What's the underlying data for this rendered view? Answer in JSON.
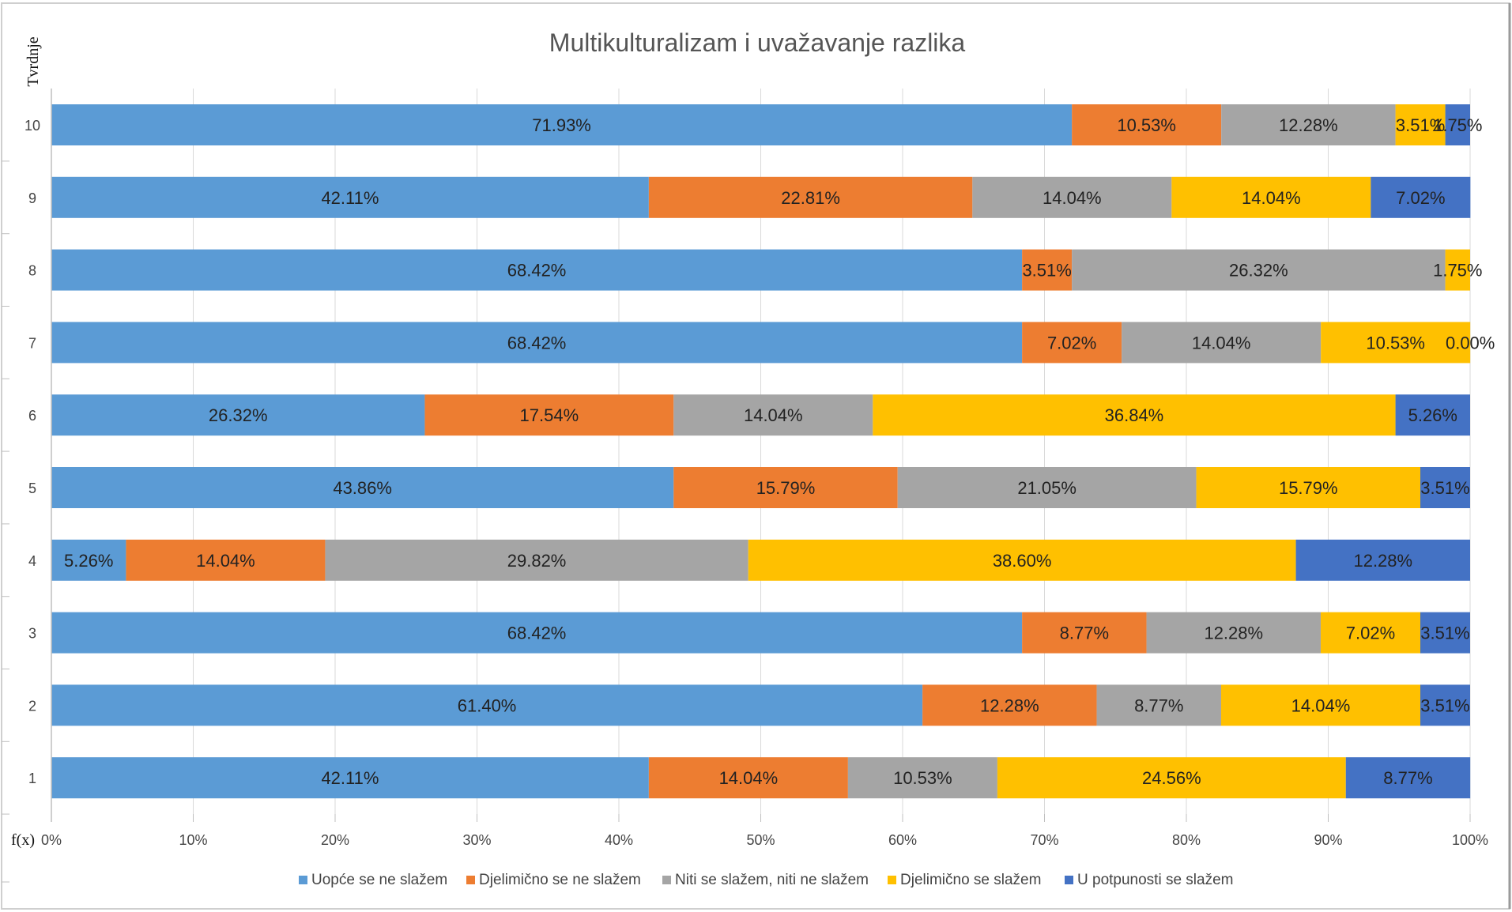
{
  "y_axis_label": "Tvrdnje",
  "fx_label": "f(x)",
  "chart_data": {
    "type": "bar",
    "orientation": "horizontal",
    "stacked": "percent",
    "title": "Multikulturalizam i uvažavanje razlika",
    "xlabel": "",
    "ylabel": "Tvrdnje",
    "xlim": [
      0,
      100
    ],
    "x_ticks": [
      "0%",
      "10%",
      "20%",
      "30%",
      "40%",
      "50%",
      "60%",
      "70%",
      "80%",
      "90%",
      "100%"
    ],
    "categories": [
      "10",
      "9",
      "8",
      "7",
      "6",
      "5",
      "4",
      "3",
      "2",
      "1"
    ],
    "series": [
      {
        "name": "Uopće se ne slažem",
        "color": "#5B9BD5",
        "values": [
          71.93,
          42.11,
          68.42,
          68.42,
          26.32,
          43.86,
          5.26,
          68.42,
          61.4,
          42.11
        ],
        "labels": [
          "71.93%",
          "42.11%",
          "68.42%",
          "68.42%",
          "26.32%",
          "43.86%",
          "5.26%",
          "68.42%",
          "61.40%",
          "42.11%"
        ]
      },
      {
        "name": "Djelimično se ne slažem",
        "color": "#ED7D31",
        "values": [
          10.53,
          22.81,
          3.51,
          7.02,
          17.54,
          15.79,
          14.04,
          8.77,
          12.28,
          14.04
        ],
        "labels": [
          "10.53%",
          "22.81%",
          "3.51%",
          "7.02%",
          "17.54%",
          "15.79%",
          "14.04%",
          "8.77%",
          "12.28%",
          "14.04%"
        ]
      },
      {
        "name": "Niti se slažem, niti ne slažem",
        "color": "#A5A5A5",
        "values": [
          12.28,
          14.04,
          26.32,
          14.04,
          14.04,
          21.05,
          29.82,
          12.28,
          8.77,
          10.53
        ],
        "labels": [
          "12.28%",
          "14.04%",
          "26.32%",
          "14.04%",
          "14.04%",
          "21.05%",
          "29.82%",
          "12.28%",
          "8.77%",
          "10.53%"
        ]
      },
      {
        "name": "Djelimično se slažem",
        "color": "#FFC000",
        "values": [
          3.51,
          14.04,
          1.75,
          10.53,
          36.84,
          15.79,
          38.6,
          7.02,
          14.04,
          24.56
        ],
        "labels": [
          "3.51%",
          "14.04%",
          "1.75%",
          "10.53%",
          "36.84%",
          "15.79%",
          "38.60%",
          "7.02%",
          "14.04%",
          "24.56%"
        ]
      },
      {
        "name": "U potpunosti se slažem",
        "color": "#4472C4",
        "values": [
          1.75,
          7.02,
          0,
          0.0,
          5.26,
          3.51,
          12.28,
          3.51,
          3.51,
          8.77
        ],
        "labels": [
          "1.75%",
          "7.02%",
          "",
          "0.00%",
          "5.26%",
          "3.51%",
          "12.28%",
          "3.51%",
          "3.51%",
          "8.77%"
        ]
      }
    ],
    "grid": true,
    "legend_position": "bottom"
  }
}
